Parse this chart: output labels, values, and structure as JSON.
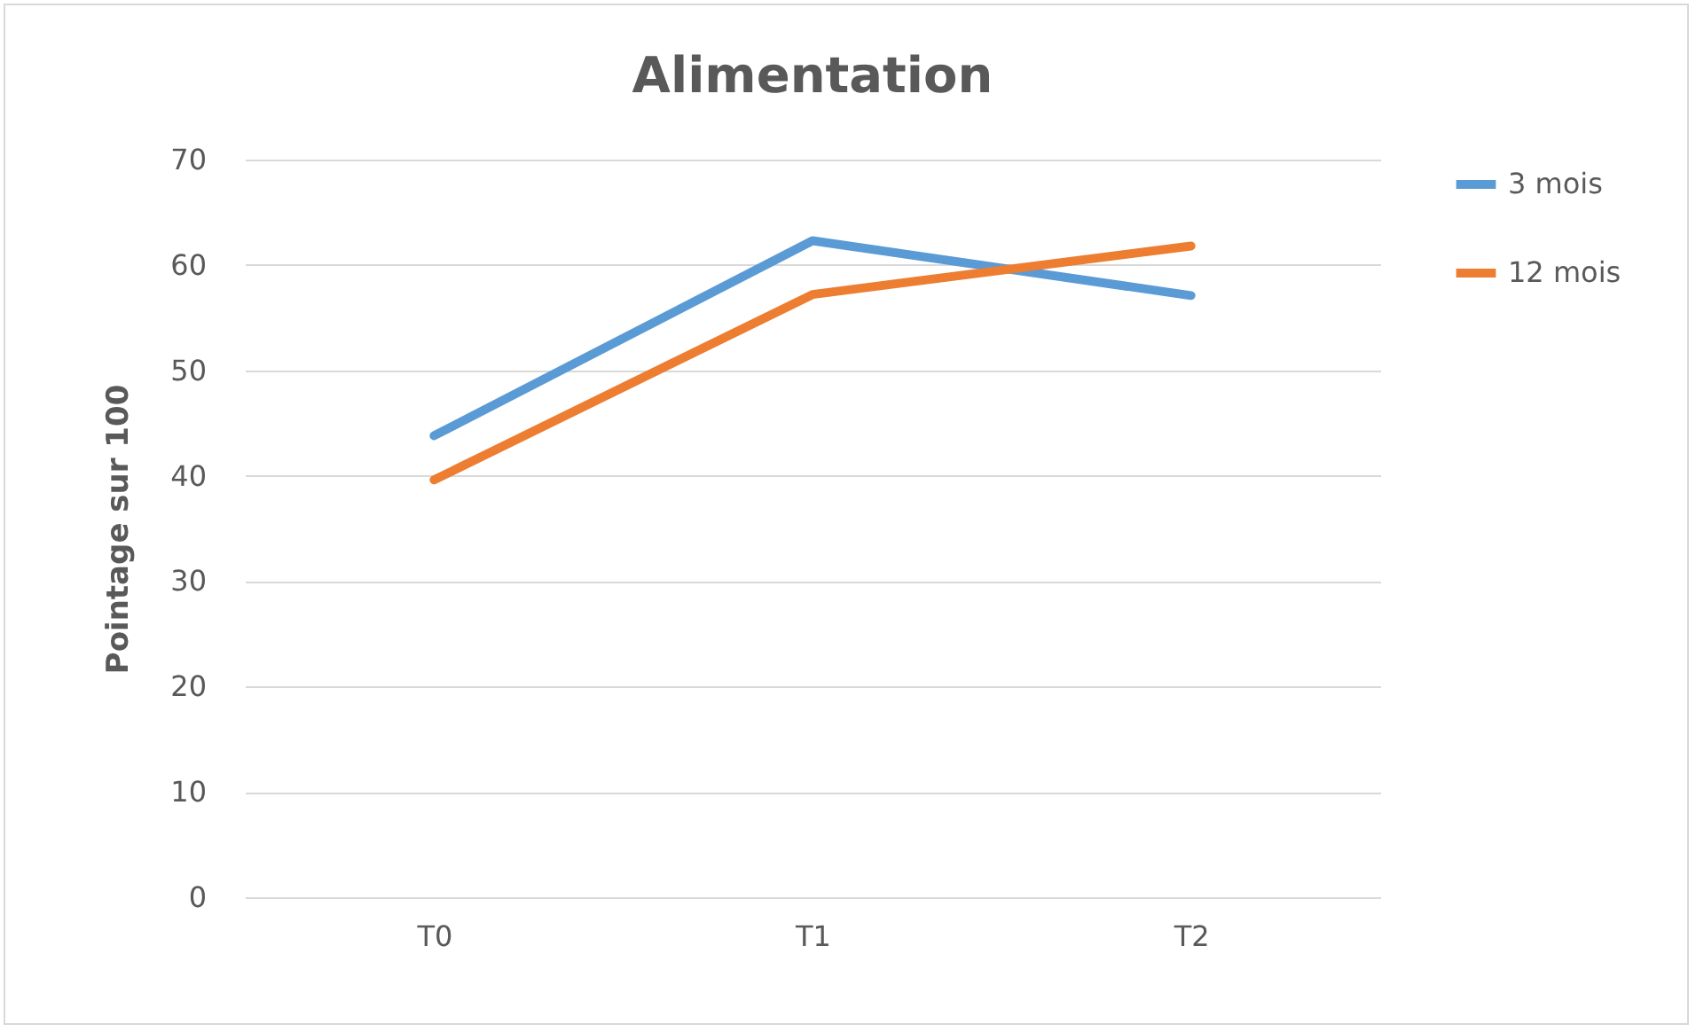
{
  "chart_data": {
    "type": "line",
    "title": "Alimentation",
    "ylabel": "Pointage sur 100",
    "categories": [
      "T0",
      "T1",
      "T2"
    ],
    "series": [
      {
        "name": "3 mois",
        "color": "#5b9bd5",
        "values": [
          43.8,
          62.3,
          57.1
        ]
      },
      {
        "name": "12 mois",
        "color": "#ed7d31",
        "values": [
          39.6,
          57.2,
          61.8
        ]
      }
    ],
    "ylim": [
      0,
      70
    ],
    "yticks": [
      0,
      10,
      20,
      30,
      40,
      50,
      60,
      70
    ],
    "grid": "y",
    "legend": "right",
    "marker": "none",
    "line_style": "solid"
  }
}
